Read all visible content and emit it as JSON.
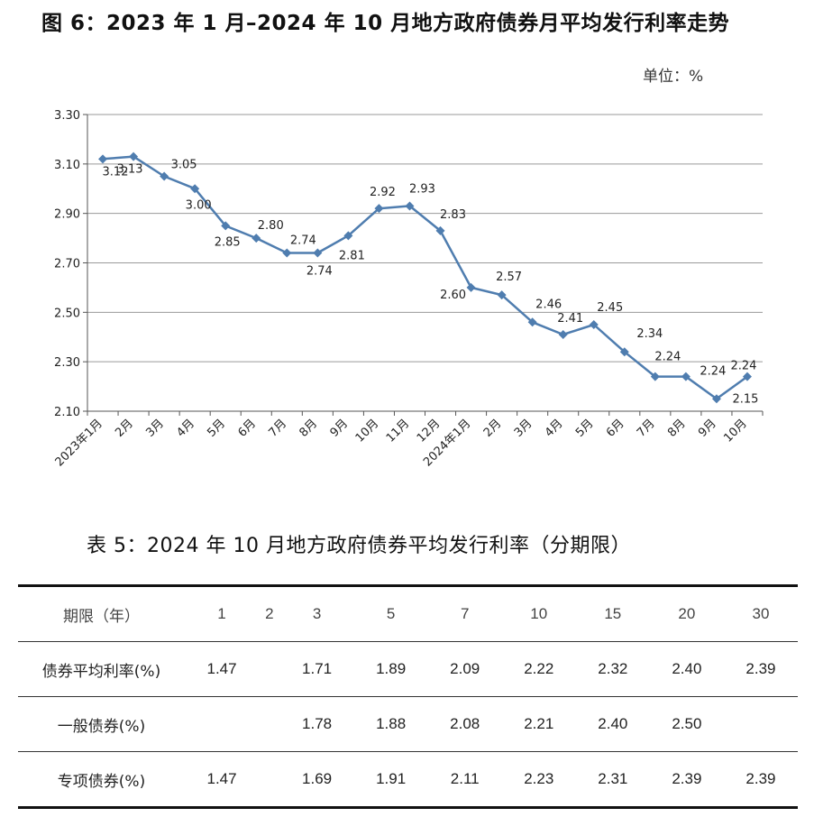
{
  "figure_title": "图 6：2023 年 1 月–2024 年 10 月地方政府债券月平均发行利率走势",
  "unit_label": "单位：%",
  "chart_data": {
    "type": "line",
    "title": "图 6：2023 年 1 月–2024 年 10 月地方政府债券月平均发行利率走势",
    "xlabel": "",
    "ylabel": "单位：%",
    "ylim": [
      2.1,
      3.3
    ],
    "yticks": [
      "2.10",
      "2.30",
      "2.50",
      "2.70",
      "2.90",
      "3.10",
      "3.30"
    ],
    "grid": true,
    "categories": [
      "2023年1月",
      "2月",
      "3月",
      "4月",
      "5月",
      "6月",
      "7月",
      "8月",
      "9月",
      "10月",
      "11月",
      "12月",
      "2024年1月",
      "2月",
      "3月",
      "4月",
      "5月",
      "6月",
      "7月",
      "8月",
      "9月",
      "10月"
    ],
    "values": [
      3.12,
      3.13,
      3.05,
      3.0,
      2.85,
      2.8,
      2.74,
      2.74,
      2.81,
      2.92,
      2.93,
      2.83,
      2.6,
      2.57,
      2.46,
      2.41,
      2.45,
      2.34,
      2.24,
      2.24,
      2.15,
      2.24
    ],
    "labels": [
      "3.12",
      "3.13",
      "3.05",
      "3.00",
      "2.85",
      "2.80",
      "2.74",
      "2.74",
      "2.81",
      "2.92",
      "2.93",
      "2.83",
      "2.60",
      "2.57",
      "2.46",
      "2.41",
      "2.45",
      "2.34",
      "2.24",
      "2.24",
      "2.15",
      "2.24"
    ],
    "line_color": "#4f7daf",
    "marker": "diamond"
  },
  "table": {
    "title": "表 5：2024 年 10 月地方政府债券平均发行利率（分期限）",
    "header_label": "期限（年）",
    "terms": [
      "1",
      "2",
      "3",
      "5",
      "7",
      "10",
      "15",
      "20",
      "30"
    ],
    "rows": [
      {
        "label": "债券平均利率(%)",
        "values": [
          "1.47",
          "",
          "1.71",
          "1.89",
          "2.09",
          "2.22",
          "2.32",
          "2.40",
          "2.39"
        ]
      },
      {
        "label": "一般债券(%)",
        "values": [
          "",
          "",
          "1.78",
          "1.88",
          "2.08",
          "2.21",
          "2.40",
          "2.50",
          ""
        ]
      },
      {
        "label": "专项债券(%)",
        "values": [
          "1.47",
          "",
          "1.69",
          "1.91",
          "2.11",
          "2.23",
          "2.31",
          "2.39",
          "2.39"
        ]
      }
    ]
  }
}
